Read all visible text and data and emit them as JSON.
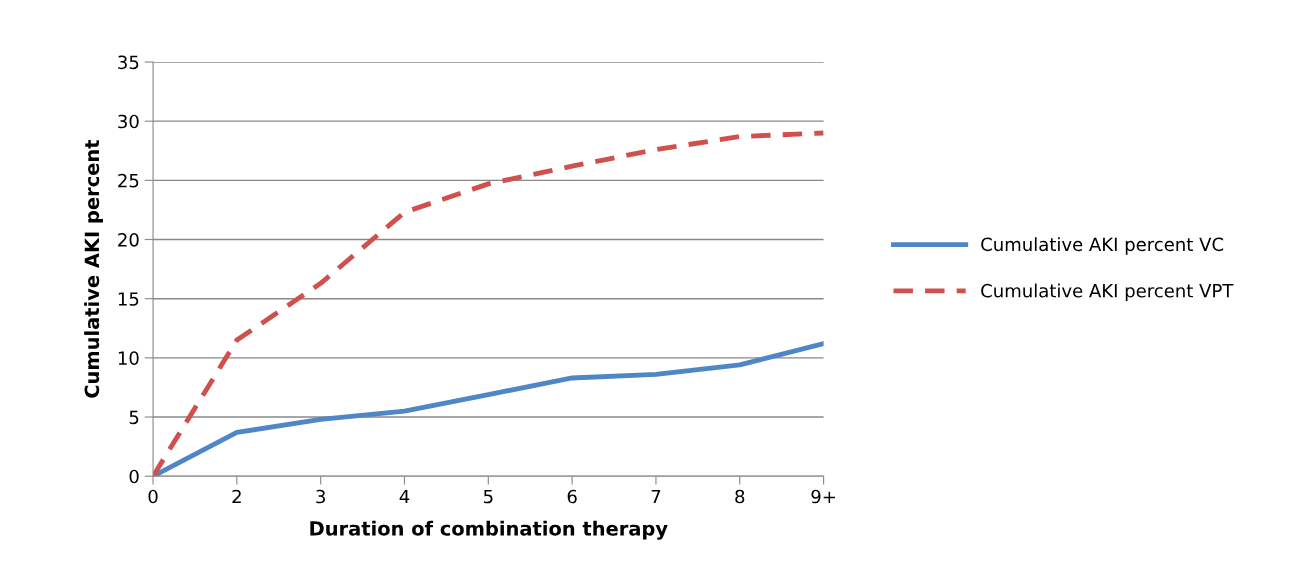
{
  "chart_data": {
    "type": "line",
    "xlabel": "Duration of combination therapy",
    "ylabel": "Cumulative AKI percent",
    "categories": [
      "0",
      "2",
      "3",
      "4",
      "5",
      "6",
      "7",
      "8",
      "9+"
    ],
    "series": [
      {
        "name": "Cumulative AKI percent VC",
        "color": "#4f86c6",
        "line_style": "solid",
        "values": [
          0,
          3.7,
          4.8,
          5.5,
          6.9,
          8.3,
          8.6,
          9.4,
          11.2
        ]
      },
      {
        "name": "Cumulative AKI percent VPT",
        "color": "#d0504d",
        "line_style": "dashed",
        "values": [
          0,
          11.5,
          16.3,
          22.3,
          24.7,
          26.2,
          27.6,
          28.7,
          29.0
        ]
      }
    ],
    "ylim": [
      0,
      35
    ],
    "yticks": [
      0,
      5,
      10,
      15,
      20,
      25,
      30,
      35
    ],
    "grid": "y",
    "legend": "right",
    "marker": "none"
  }
}
